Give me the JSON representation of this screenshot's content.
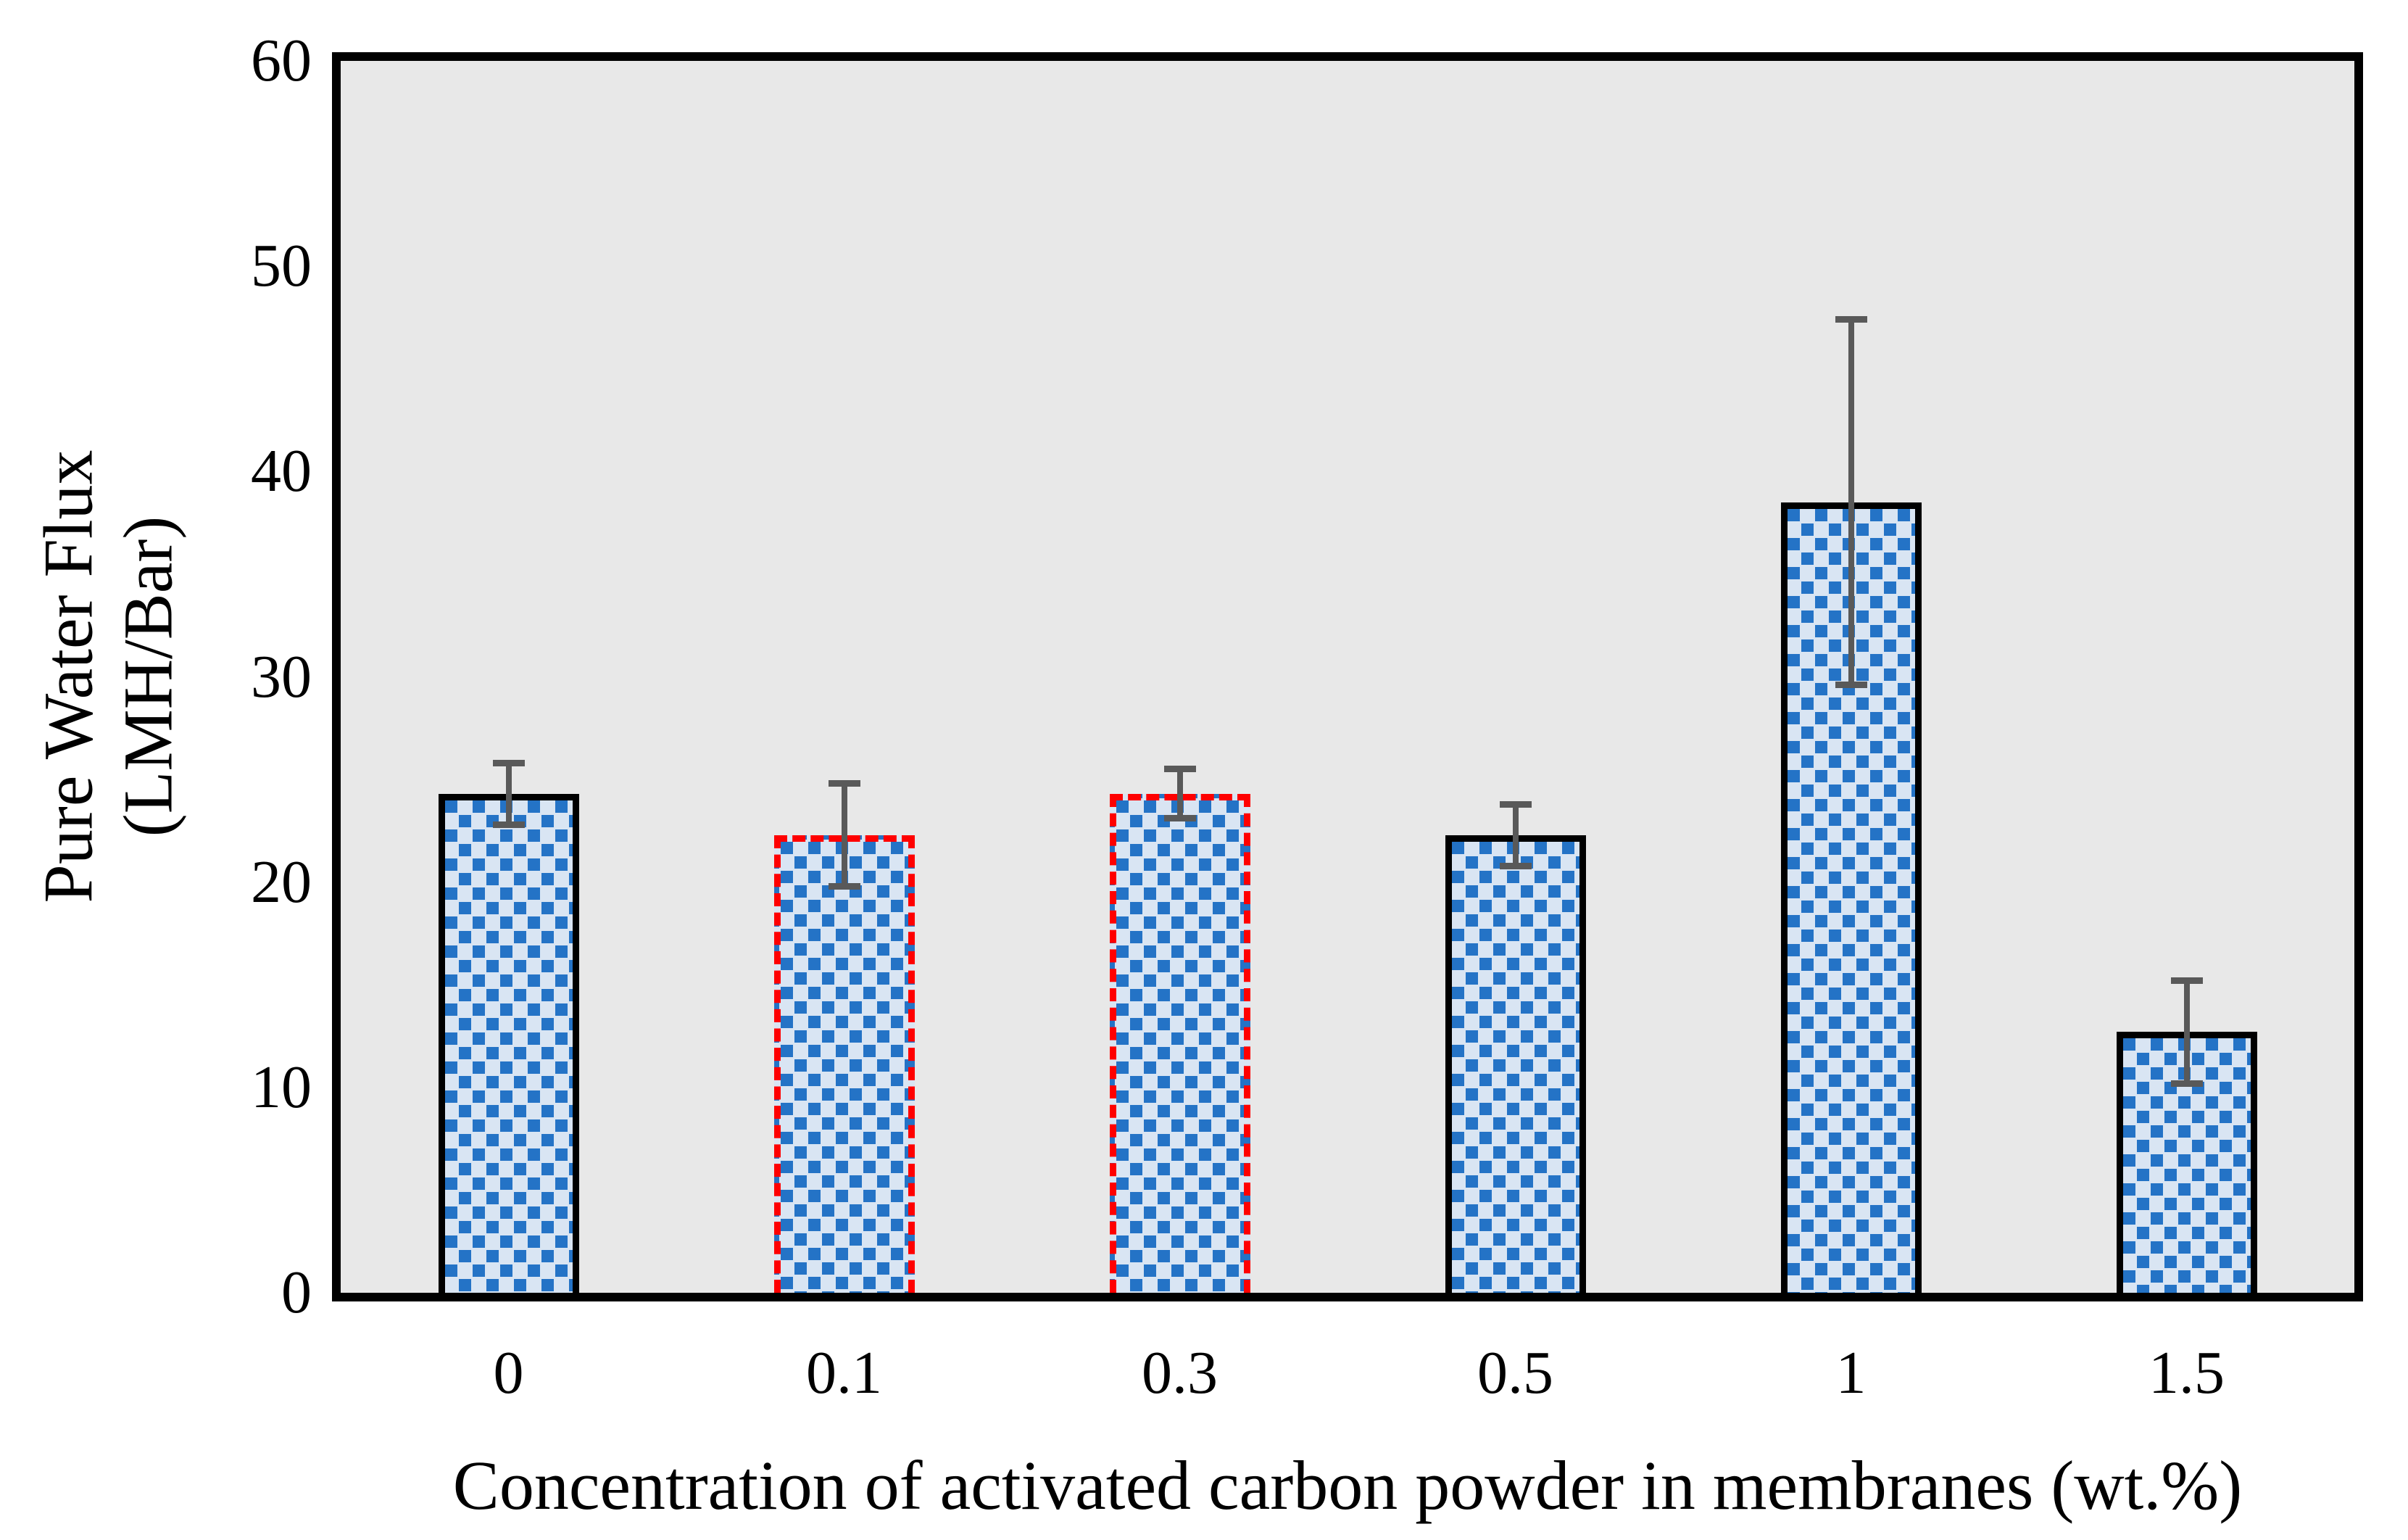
{
  "chart_data": {
    "type": "bar",
    "title": "",
    "xlabel": "Concentration of activated carbon powder in membranes (wt.%)",
    "ylabel_line1": "Pure Water Flux",
    "ylabel_line2": "(LMH/Bar)",
    "categories": [
      "0",
      "0.1",
      "0.3",
      "0.5",
      "1",
      "1.5"
    ],
    "values": [
      24.3,
      22.3,
      24.3,
      22.3,
      38.5,
      12.7
    ],
    "errors": [
      1.5,
      2.5,
      1.2,
      1.5,
      8.9,
      2.5
    ],
    "highlighted_red_dashed": [
      false,
      true,
      true,
      false,
      false,
      false
    ],
    "ylim": [
      0,
      60
    ],
    "yticks": [
      0,
      10,
      20,
      30,
      40,
      50,
      60
    ],
    "grid": "off",
    "legend": "none",
    "colors": {
      "plot_background": "#E8E8E8",
      "page_background": "#FFFFFF",
      "bar_pattern_square": "#2473C6",
      "bar_pattern_background": "#D9E5F3",
      "bar_border": "#000000",
      "highlight_border": "#FF0000",
      "error_bar": "#595959",
      "axis_frame": "#000000"
    }
  }
}
